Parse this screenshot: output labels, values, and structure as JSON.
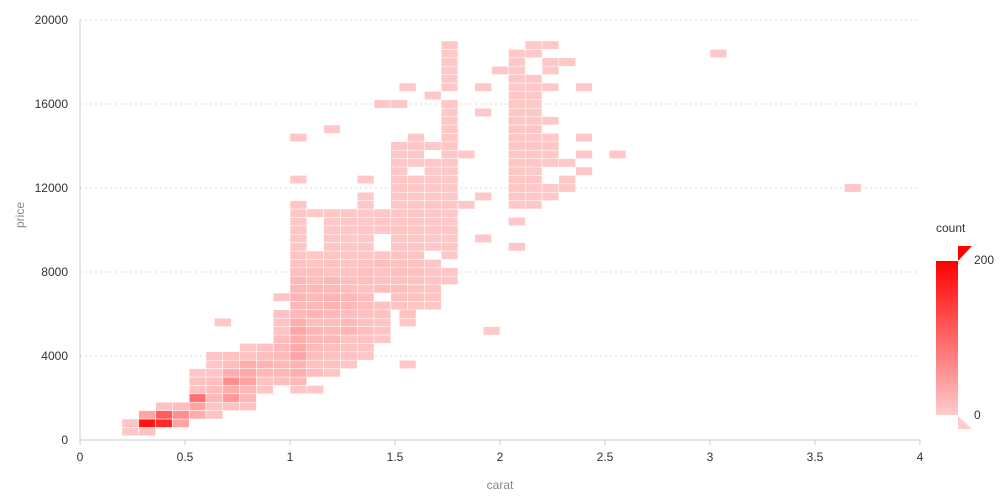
{
  "chart_data": {
    "type": "heatmap",
    "xlabel": "carat",
    "ylabel": "price",
    "xlim": [
      0,
      4
    ],
    "ylim": [
      0,
      20000
    ],
    "x_ticks": [
      "0",
      "0.5",
      "1",
      "1.5",
      "2",
      "2.5",
      "3",
      "3.5",
      "4"
    ],
    "y_ticks": [
      "0",
      "4000",
      "8000",
      "12000",
      "16000",
      "20000"
    ],
    "grid": "horizontal",
    "bin_width": 0.08,
    "bin_height": 400,
    "colors": {
      "low": "#ffcccc",
      "high": "#ff0000"
    },
    "legend": {
      "title": "count",
      "min_label": "0",
      "max_label": "200",
      "min": 0,
      "max": 200,
      "placement": "right"
    },
    "bins": [
      [
        0.2,
        200,
        6
      ],
      [
        0.28,
        200,
        10
      ],
      [
        0.2,
        600,
        8
      ],
      [
        0.28,
        600,
        180
      ],
      [
        0.36,
        600,
        160
      ],
      [
        0.44,
        600,
        40
      ],
      [
        0.28,
        1000,
        40
      ],
      [
        0.36,
        1000,
        110
      ],
      [
        0.44,
        1000,
        60
      ],
      [
        0.52,
        1000,
        30
      ],
      [
        0.6,
        1000,
        10
      ],
      [
        0.36,
        1400,
        10
      ],
      [
        0.44,
        1400,
        15
      ],
      [
        0.52,
        1400,
        40
      ],
      [
        0.6,
        1400,
        8
      ],
      [
        0.68,
        1400,
        10
      ],
      [
        0.76,
        1400,
        12
      ],
      [
        0.52,
        1800,
        90
      ],
      [
        0.6,
        1800,
        20
      ],
      [
        0.68,
        1800,
        50
      ],
      [
        0.76,
        1800,
        20
      ],
      [
        0.52,
        2200,
        10
      ],
      [
        0.6,
        2200,
        15
      ],
      [
        0.68,
        2200,
        30
      ],
      [
        0.76,
        2200,
        20
      ],
      [
        0.84,
        2200,
        8
      ],
      [
        1.0,
        2200,
        6
      ],
      [
        1.08,
        2200,
        4
      ],
      [
        0.52,
        2600,
        10
      ],
      [
        0.6,
        2600,
        12
      ],
      [
        0.68,
        2600,
        60
      ],
      [
        0.76,
        2600,
        40
      ],
      [
        0.84,
        2600,
        10
      ],
      [
        0.92,
        2600,
        15
      ],
      [
        1.0,
        2600,
        20
      ],
      [
        0.52,
        3000,
        6
      ],
      [
        0.6,
        3000,
        8
      ],
      [
        0.68,
        3000,
        30
      ],
      [
        0.76,
        3000,
        35
      ],
      [
        0.84,
        3000,
        20
      ],
      [
        0.92,
        3000,
        20
      ],
      [
        1.0,
        3000,
        30
      ],
      [
        1.08,
        3000,
        15
      ],
      [
        1.16,
        3000,
        6
      ],
      [
        0.6,
        3400,
        6
      ],
      [
        0.68,
        3400,
        15
      ],
      [
        0.76,
        3400,
        30
      ],
      [
        0.84,
        3400,
        25
      ],
      [
        0.92,
        3400,
        20
      ],
      [
        1.0,
        3400,
        25
      ],
      [
        1.08,
        3400,
        10
      ],
      [
        1.16,
        3400,
        10
      ],
      [
        1.24,
        3400,
        6
      ],
      [
        1.52,
        3400,
        4
      ],
      [
        0.6,
        3800,
        8
      ],
      [
        0.68,
        3800,
        10
      ],
      [
        0.76,
        3800,
        10
      ],
      [
        0.84,
        3800,
        15
      ],
      [
        0.92,
        3800,
        20
      ],
      [
        1.0,
        3800,
        40
      ],
      [
        1.08,
        3800,
        15
      ],
      [
        1.16,
        3800,
        10
      ],
      [
        1.24,
        3800,
        10
      ],
      [
        1.32,
        3800,
        6
      ],
      [
        0.76,
        4200,
        6
      ],
      [
        0.84,
        4200,
        10
      ],
      [
        0.92,
        4200,
        20
      ],
      [
        1.0,
        4200,
        35
      ],
      [
        1.08,
        4200,
        20
      ],
      [
        1.16,
        4200,
        15
      ],
      [
        1.24,
        4200,
        10
      ],
      [
        1.32,
        4200,
        8
      ],
      [
        0.92,
        4600,
        15
      ],
      [
        1.0,
        4600,
        30
      ],
      [
        1.08,
        4600,
        20
      ],
      [
        1.16,
        4600,
        20
      ],
      [
        1.24,
        4600,
        10
      ],
      [
        1.32,
        4600,
        10
      ],
      [
        1.4,
        4600,
        6
      ],
      [
        0.92,
        5000,
        8
      ],
      [
        1.0,
        5000,
        40
      ],
      [
        1.08,
        5000,
        25
      ],
      [
        1.16,
        5000,
        20
      ],
      [
        1.24,
        5000,
        25
      ],
      [
        1.32,
        5000,
        15
      ],
      [
        1.4,
        5000,
        10
      ],
      [
        1.92,
        5000,
        4
      ],
      [
        0.64,
        5400,
        6
      ],
      [
        0.92,
        5400,
        10
      ],
      [
        1.0,
        5400,
        30
      ],
      [
        1.08,
        5400,
        15
      ],
      [
        1.16,
        5400,
        15
      ],
      [
        1.24,
        5400,
        20
      ],
      [
        1.32,
        5400,
        10
      ],
      [
        1.4,
        5400,
        8
      ],
      [
        1.52,
        5400,
        6
      ],
      [
        0.92,
        5800,
        10
      ],
      [
        1.0,
        5800,
        20
      ],
      [
        1.08,
        5800,
        25
      ],
      [
        1.16,
        5800,
        20
      ],
      [
        1.24,
        5800,
        15
      ],
      [
        1.32,
        5800,
        12
      ],
      [
        1.4,
        5800,
        10
      ],
      [
        1.52,
        5800,
        10
      ],
      [
        1.0,
        6200,
        20
      ],
      [
        1.08,
        6200,
        20
      ],
      [
        1.16,
        6200,
        25
      ],
      [
        1.24,
        6200,
        20
      ],
      [
        1.32,
        6200,
        15
      ],
      [
        1.4,
        6200,
        10
      ],
      [
        1.48,
        6200,
        10
      ],
      [
        1.56,
        6200,
        8
      ],
      [
        1.64,
        6200,
        6
      ],
      [
        0.92,
        6600,
        8
      ],
      [
        1.0,
        6600,
        25
      ],
      [
        1.08,
        6600,
        20
      ],
      [
        1.16,
        6600,
        25
      ],
      [
        1.24,
        6600,
        20
      ],
      [
        1.32,
        6600,
        15
      ],
      [
        1.48,
        6600,
        12
      ],
      [
        1.56,
        6600,
        10
      ],
      [
        1.64,
        6600,
        8
      ],
      [
        1.0,
        7000,
        20
      ],
      [
        1.08,
        7000,
        20
      ],
      [
        1.16,
        7000,
        20
      ],
      [
        1.24,
        7000,
        15
      ],
      [
        1.32,
        7000,
        10
      ],
      [
        1.4,
        7000,
        15
      ],
      [
        1.48,
        7000,
        15
      ],
      [
        1.56,
        7000,
        10
      ],
      [
        1.64,
        7000,
        8
      ],
      [
        1.0,
        7400,
        20
      ],
      [
        1.08,
        7400,
        15
      ],
      [
        1.16,
        7400,
        20
      ],
      [
        1.24,
        7400,
        15
      ],
      [
        1.32,
        7400,
        15
      ],
      [
        1.4,
        7400,
        10
      ],
      [
        1.48,
        7400,
        12
      ],
      [
        1.56,
        7400,
        10
      ],
      [
        1.64,
        7400,
        8
      ],
      [
        1.72,
        7400,
        6
      ],
      [
        1.0,
        7800,
        15
      ],
      [
        1.08,
        7800,
        15
      ],
      [
        1.16,
        7800,
        10
      ],
      [
        1.24,
        7800,
        10
      ],
      [
        1.32,
        7800,
        15
      ],
      [
        1.4,
        7800,
        10
      ],
      [
        1.48,
        7800,
        15
      ],
      [
        1.56,
        7800,
        12
      ],
      [
        1.64,
        7800,
        8
      ],
      [
        1.72,
        7800,
        6
      ],
      [
        1.0,
        8200,
        10
      ],
      [
        1.08,
        8200,
        8
      ],
      [
        1.16,
        8200,
        10
      ],
      [
        1.24,
        8200,
        8
      ],
      [
        1.32,
        8200,
        10
      ],
      [
        1.4,
        8200,
        15
      ],
      [
        1.48,
        8200,
        10
      ],
      [
        1.56,
        8200,
        10
      ],
      [
        1.64,
        8200,
        6
      ],
      [
        1.0,
        8600,
        8
      ],
      [
        1.08,
        8600,
        6
      ],
      [
        1.16,
        8600,
        8
      ],
      [
        1.24,
        8600,
        8
      ],
      [
        1.32,
        8600,
        6
      ],
      [
        1.4,
        8600,
        6
      ],
      [
        1.48,
        8600,
        10
      ],
      [
        1.56,
        8600,
        6
      ],
      [
        1.72,
        8600,
        4
      ],
      [
        1.0,
        9000,
        6
      ],
      [
        1.16,
        9000,
        6
      ],
      [
        1.24,
        9000,
        6
      ],
      [
        1.32,
        9000,
        6
      ],
      [
        1.48,
        9000,
        8
      ],
      [
        1.56,
        9000,
        6
      ],
      [
        1.64,
        9000,
        4
      ],
      [
        1.72,
        9000,
        6
      ],
      [
        2.04,
        9000,
        4
      ],
      [
        1.0,
        9400,
        6
      ],
      [
        1.16,
        9400,
        6
      ],
      [
        1.24,
        9400,
        4
      ],
      [
        1.32,
        9400,
        4
      ],
      [
        1.48,
        9400,
        6
      ],
      [
        1.56,
        9400,
        6
      ],
      [
        1.64,
        9400,
        4
      ],
      [
        1.72,
        9400,
        4
      ],
      [
        1.88,
        9400,
        4
      ],
      [
        1.0,
        9800,
        6
      ],
      [
        1.16,
        9800,
        6
      ],
      [
        1.24,
        9800,
        4
      ],
      [
        1.32,
        9800,
        6
      ],
      [
        1.4,
        9800,
        4
      ],
      [
        1.48,
        9800,
        8
      ],
      [
        1.56,
        9800,
        6
      ],
      [
        1.64,
        9800,
        6
      ],
      [
        1.72,
        9800,
        6
      ],
      [
        1.0,
        10200,
        6
      ],
      [
        1.16,
        10200,
        4
      ],
      [
        1.24,
        10200,
        6
      ],
      [
        1.32,
        10200,
        4
      ],
      [
        1.4,
        10200,
        6
      ],
      [
        1.48,
        10200,
        6
      ],
      [
        1.56,
        10200,
        6
      ],
      [
        1.64,
        10200,
        4
      ],
      [
        1.72,
        10200,
        4
      ],
      [
        2.04,
        10200,
        4
      ],
      [
        1.0,
        10600,
        6
      ],
      [
        1.08,
        10600,
        4
      ],
      [
        1.16,
        10600,
        4
      ],
      [
        1.24,
        10600,
        6
      ],
      [
        1.32,
        10600,
        4
      ],
      [
        1.4,
        10600,
        6
      ],
      [
        1.48,
        10600,
        6
      ],
      [
        1.56,
        10600,
        6
      ],
      [
        1.64,
        10600,
        6
      ],
      [
        1.72,
        10600,
        4
      ],
      [
        1.0,
        11000,
        6
      ],
      [
        1.32,
        11000,
        4
      ],
      [
        1.48,
        11000,
        6
      ],
      [
        1.56,
        11000,
        6
      ],
      [
        1.64,
        11000,
        6
      ],
      [
        1.72,
        11000,
        6
      ],
      [
        1.8,
        11000,
        4
      ],
      [
        2.04,
        11000,
        4
      ],
      [
        2.12,
        11000,
        4
      ],
      [
        1.32,
        11400,
        4
      ],
      [
        1.48,
        11400,
        6
      ],
      [
        1.56,
        11400,
        4
      ],
      [
        1.64,
        11400,
        4
      ],
      [
        1.72,
        11400,
        4
      ],
      [
        1.88,
        11400,
        4
      ],
      [
        2.04,
        11400,
        6
      ],
      [
        2.12,
        11400,
        4
      ],
      [
        2.2,
        11400,
        4
      ],
      [
        1.48,
        11800,
        6
      ],
      [
        1.56,
        11800,
        4
      ],
      [
        1.64,
        11800,
        4
      ],
      [
        1.72,
        11800,
        4
      ],
      [
        2.04,
        11800,
        6
      ],
      [
        2.12,
        11800,
        4
      ],
      [
        2.2,
        11800,
        4
      ],
      [
        2.28,
        11800,
        4
      ],
      [
        3.64,
        11800,
        4
      ],
      [
        1.0,
        12200,
        4
      ],
      [
        1.32,
        12200,
        4
      ],
      [
        1.48,
        12200,
        6
      ],
      [
        1.56,
        12200,
        6
      ],
      [
        1.64,
        12200,
        4
      ],
      [
        1.72,
        12200,
        4
      ],
      [
        2.04,
        12200,
        6
      ],
      [
        2.12,
        12200,
        6
      ],
      [
        2.28,
        12200,
        4
      ],
      [
        1.48,
        12600,
        6
      ],
      [
        1.64,
        12600,
        4
      ],
      [
        1.72,
        12600,
        6
      ],
      [
        2.04,
        12600,
        6
      ],
      [
        2.12,
        12600,
        4
      ],
      [
        2.36,
        12600,
        4
      ],
      [
        1.48,
        13000,
        6
      ],
      [
        1.56,
        13000,
        4
      ],
      [
        1.64,
        13000,
        4
      ],
      [
        1.72,
        13000,
        6
      ],
      [
        2.04,
        13000,
        6
      ],
      [
        2.12,
        13000,
        6
      ],
      [
        2.2,
        13000,
        4
      ],
      [
        2.28,
        13000,
        4
      ],
      [
        1.48,
        13400,
        6
      ],
      [
        1.56,
        13400,
        4
      ],
      [
        1.72,
        13400,
        6
      ],
      [
        1.8,
        13400,
        4
      ],
      [
        2.04,
        13400,
        6
      ],
      [
        2.12,
        13400,
        6
      ],
      [
        2.2,
        13400,
        4
      ],
      [
        2.36,
        13400,
        4
      ],
      [
        2.52,
        13400,
        4
      ],
      [
        1.48,
        13800,
        6
      ],
      [
        1.56,
        13800,
        4
      ],
      [
        1.64,
        13800,
        4
      ],
      [
        1.72,
        13800,
        6
      ],
      [
        2.04,
        13800,
        6
      ],
      [
        2.12,
        13800,
        6
      ],
      [
        2.2,
        13800,
        4
      ],
      [
        1.0,
        14200,
        4
      ],
      [
        1.56,
        14200,
        4
      ],
      [
        1.72,
        14200,
        6
      ],
      [
        2.04,
        14200,
        6
      ],
      [
        2.12,
        14200,
        4
      ],
      [
        2.2,
        14200,
        4
      ],
      [
        2.36,
        14200,
        4
      ],
      [
        1.72,
        14600,
        6
      ],
      [
        2.04,
        14600,
        6
      ],
      [
        2.12,
        14600,
        6
      ],
      [
        1.16,
        14600,
        4
      ],
      [
        1.72,
        15000,
        4
      ],
      [
        2.04,
        15000,
        6
      ],
      [
        2.12,
        15000,
        4
      ],
      [
        2.2,
        15000,
        4
      ],
      [
        1.72,
        15400,
        4
      ],
      [
        1.88,
        15400,
        4
      ],
      [
        2.04,
        15400,
        6
      ],
      [
        2.12,
        15400,
        4
      ],
      [
        1.72,
        15800,
        4
      ],
      [
        1.48,
        15800,
        4
      ],
      [
        2.04,
        15800,
        6
      ],
      [
        2.12,
        15800,
        4
      ],
      [
        1.4,
        15800,
        4
      ],
      [
        1.64,
        16200,
        4
      ],
      [
        2.04,
        16200,
        6
      ],
      [
        2.12,
        16200,
        4
      ],
      [
        1.72,
        16600,
        4
      ],
      [
        1.52,
        16600,
        4
      ],
      [
        1.88,
        16600,
        4
      ],
      [
        2.04,
        16600,
        4
      ],
      [
        2.12,
        16600,
        4
      ],
      [
        2.2,
        16600,
        4
      ],
      [
        2.36,
        16600,
        4
      ],
      [
        1.72,
        17000,
        4
      ],
      [
        2.04,
        17000,
        4
      ],
      [
        2.12,
        17000,
        4
      ],
      [
        1.72,
        17400,
        4
      ],
      [
        1.96,
        17400,
        4
      ],
      [
        2.04,
        17400,
        4
      ],
      [
        2.2,
        17400,
        4
      ],
      [
        1.72,
        17800,
        4
      ],
      [
        2.04,
        17800,
        4
      ],
      [
        2.2,
        17800,
        4
      ],
      [
        2.28,
        17800,
        4
      ],
      [
        1.72,
        18200,
        4
      ],
      [
        2.04,
        18200,
        4
      ],
      [
        2.12,
        18200,
        4
      ],
      [
        3.0,
        18200,
        4
      ],
      [
        2.12,
        18600,
        4
      ],
      [
        2.2,
        18600,
        4
      ],
      [
        1.72,
        18600,
        4
      ]
    ]
  }
}
